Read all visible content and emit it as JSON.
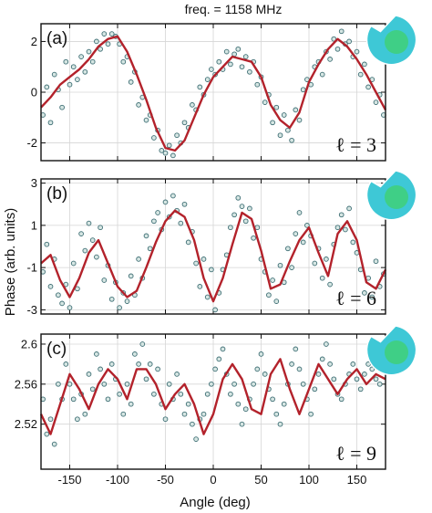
{
  "figure": {
    "title": "freq. = 1158 MHz",
    "xlabel": "Angle (deg)",
    "ylabel": "Phase (arb. units)"
  },
  "colors": {
    "fit_line": "#b3222b",
    "points_fill": "#d6e6e3",
    "points_stroke": "#3e6e74",
    "icon_outer": "#3ec8d6",
    "icon_inner": "#3fcf86",
    "grid": "#d6d6d6"
  },
  "chart_data": [
    {
      "type": "line",
      "panel_label": "(a)",
      "mode_label": "ℓ = 3",
      "ylim": [
        -2.7,
        2.7
      ],
      "yticks": [
        -2,
        0,
        2
      ],
      "ytick_labels": [
        "-2",
        "0",
        "2"
      ],
      "xlim": [
        -180,
        180
      ],
      "xticks": [
        -150,
        -100,
        -50,
        0,
        50,
        100,
        150
      ],
      "grid": true,
      "series": [
        {
          "kind": "line",
          "x": [
            -180,
            -170,
            -160,
            -150,
            -140,
            -130,
            -120,
            -110,
            -100,
            -90,
            -80,
            -70,
            -60,
            -50,
            -40,
            -30,
            -20,
            -10,
            0,
            10,
            20,
            30,
            40,
            50,
            60,
            70,
            80,
            90,
            100,
            110,
            120,
            130,
            140,
            150,
            160,
            170,
            180
          ],
          "y": [
            -0.6,
            -0.2,
            0.3,
            0.6,
            0.9,
            1.3,
            1.8,
            2.1,
            2.2,
            1.6,
            0.7,
            -0.3,
            -1.4,
            -2.2,
            -2.3,
            -1.9,
            -1.0,
            -0.1,
            0.6,
            1.0,
            1.4,
            1.3,
            1.2,
            0.6,
            -0.5,
            -1.1,
            -1.4,
            -0.8,
            0.4,
            1.1,
            1.7,
            2.1,
            1.8,
            1.3,
            0.7,
            0.0,
            -0.7
          ]
        },
        {
          "kind": "scatter",
          "x": [
            -178,
            -174,
            -170,
            -166,
            -162,
            -158,
            -154,
            -150,
            -146,
            -142,
            -138,
            -134,
            -130,
            -126,
            -122,
            -118,
            -114,
            -110,
            -106,
            -102,
            -98,
            -94,
            -90,
            -86,
            -82,
            -78,
            -74,
            -70,
            -66,
            -62,
            -58,
            -54,
            -50,
            -46,
            -42,
            -38,
            -34,
            -30,
            -26,
            -22,
            -18,
            -14,
            -10,
            -6,
            -2,
            2,
            6,
            10,
            14,
            18,
            22,
            26,
            30,
            34,
            38,
            42,
            46,
            50,
            54,
            58,
            62,
            66,
            70,
            74,
            78,
            82,
            86,
            90,
            94,
            98,
            102,
            106,
            110,
            114,
            118,
            122,
            126,
            130,
            134,
            138,
            142,
            146,
            150,
            154,
            158,
            162,
            166,
            170,
            174,
            178
          ],
          "y": [
            -0.9,
            0.2,
            -1.2,
            0.7,
            0.1,
            -0.6,
            1.2,
            0.3,
            1.0,
            0.5,
            1.4,
            0.8,
            1.6,
            1.2,
            2.0,
            1.7,
            2.3,
            1.9,
            2.3,
            2.2,
            1.9,
            1.2,
            1.4,
            0.4,
            0.8,
            -0.5,
            -0.2,
            -1.1,
            -0.9,
            -1.8,
            -1.5,
            -2.3,
            -2.4,
            -2.1,
            -2.5,
            -1.7,
            -2.0,
            -1.2,
            -1.4,
            -0.5,
            -0.7,
            0.2,
            -0.1,
            0.5,
            0.9,
            0.7,
            1.2,
            0.9,
            1.6,
            1.1,
            1.5,
            1.7,
            1.0,
            1.4,
            0.8,
            1.2,
            0.3,
            0.6,
            -0.4,
            -0.1,
            -1.2,
            -0.6,
            -1.7,
            -0.9,
            -1.5,
            -1.9,
            -0.7,
            -1.1,
            0.1,
            0.5,
            0.3,
            1.0,
            1.2,
            0.7,
            1.6,
            1.3,
            2.1,
            1.7,
            2.4,
            1.9,
            2.0,
            1.4,
            1.6,
            0.7,
            1.1,
            0.2,
            0.5,
            -0.4,
            -0.1,
            -0.9
          ]
        }
      ]
    },
    {
      "type": "line",
      "panel_label": "(b)",
      "mode_label": "ℓ = 6",
      "ylim": [
        -3.2,
        3.2
      ],
      "yticks": [
        -3,
        -1,
        1,
        3
      ],
      "ytick_labels": [
        "-3",
        "-1",
        "1",
        "3"
      ],
      "xlim": [
        -180,
        180
      ],
      "xticks": [
        -150,
        -100,
        -50,
        0,
        50,
        100,
        150
      ],
      "grid": true,
      "series": [
        {
          "kind": "line",
          "x": [
            -180,
            -170,
            -160,
            -150,
            -140,
            -130,
            -120,
            -110,
            -100,
            -90,
            -80,
            -70,
            -60,
            -50,
            -40,
            -30,
            -20,
            -10,
            0,
            10,
            20,
            30,
            40,
            50,
            60,
            70,
            80,
            90,
            100,
            110,
            120,
            130,
            140,
            150,
            160,
            170,
            180
          ],
          "y": [
            -0.8,
            -0.4,
            -1.6,
            -2.4,
            -1.5,
            -0.3,
            0.3,
            -0.8,
            -1.9,
            -2.4,
            -2.1,
            -1.0,
            0.2,
            1.2,
            1.7,
            1.4,
            0.3,
            -1.5,
            -2.6,
            -1.5,
            0.1,
            1.6,
            1.3,
            -0.2,
            -2.0,
            -1.8,
            -0.7,
            0.3,
            0.9,
            -0.3,
            -1.4,
            0.6,
            1.2,
            0.3,
            -1.7,
            -2.0,
            -1.1
          ]
        },
        {
          "kind": "scatter",
          "x": [
            -178,
            -174,
            -170,
            -166,
            -162,
            -158,
            -154,
            -150,
            -146,
            -142,
            -138,
            -134,
            -130,
            -126,
            -122,
            -118,
            -114,
            -110,
            -106,
            -102,
            -98,
            -94,
            -90,
            -86,
            -82,
            -78,
            -74,
            -70,
            -66,
            -62,
            -58,
            -54,
            -50,
            -46,
            -42,
            -38,
            -34,
            -30,
            -26,
            -22,
            -18,
            -14,
            -10,
            -6,
            -2,
            2,
            6,
            10,
            14,
            18,
            22,
            26,
            30,
            34,
            38,
            42,
            46,
            50,
            54,
            58,
            62,
            66,
            70,
            74,
            78,
            82,
            86,
            90,
            94,
            98,
            102,
            106,
            110,
            114,
            118,
            122,
            126,
            130,
            134,
            138,
            142,
            146,
            150,
            154,
            158,
            162,
            166,
            170,
            174,
            178
          ],
          "y": [
            -1.2,
            0.1,
            -1.9,
            -0.6,
            -2.3,
            -2.7,
            -1.8,
            -2.9,
            -0.8,
            -2.0,
            0.6,
            -0.2,
            1.1,
            0.3,
            -0.5,
            0.9,
            -1.6,
            -0.9,
            -2.5,
            -1.7,
            -2.9,
            -2.2,
            -2.6,
            -1.4,
            -2.3,
            -0.6,
            -1.5,
            0.5,
            -0.1,
            1.2,
            1.6,
            0.8,
            2.1,
            1.4,
            2.4,
            1.7,
            1.1,
            2.0,
            0.2,
            0.7,
            -0.8,
            -1.9,
            -0.6,
            -2.4,
            -1.1,
            -3.0,
            -2.2,
            -1.1,
            -0.4,
            0.9,
            1.5,
            2.3,
            1.9,
            1.2,
            1.8,
            0.4,
            0.9,
            -0.6,
            -1.2,
            -2.3,
            -1.6,
            -2.6,
            -0.9,
            -1.7,
            -0.1,
            -1.0,
            0.6,
            1.6,
            0.2,
            1.0,
            0.5,
            -0.8,
            -0.1,
            -1.5,
            -0.6,
            -1.8,
            0.1,
            0.9,
            1.5,
            0.8,
            1.8,
            0.2,
            -0.3,
            -1.1,
            -2.2,
            -1.5,
            -2.4,
            -0.7,
            -1.9,
            -1.3
          ]
        }
      ]
    },
    {
      "type": "line",
      "panel_label": "(c)",
      "mode_label": "ℓ = 9",
      "ylim": [
        2.475,
        2.61
      ],
      "yticks": [
        2.52,
        2.56,
        2.6
      ],
      "ytick_labels": [
        "2.52",
        "2.56",
        "2.6"
      ],
      "xlim": [
        -180,
        180
      ],
      "xticks": [
        -150,
        -100,
        -50,
        0,
        50,
        100,
        150
      ],
      "xtick_labels": [
        "-150",
        "-100",
        "-50",
        "0",
        "50",
        "100",
        "150"
      ],
      "grid": true,
      "series": [
        {
          "kind": "line",
          "x": [
            -180,
            -170,
            -160,
            -150,
            -140,
            -130,
            -120,
            -110,
            -100,
            -90,
            -80,
            -70,
            -60,
            -50,
            -40,
            -30,
            -20,
            -10,
            0,
            10,
            20,
            30,
            40,
            50,
            60,
            70,
            80,
            90,
            100,
            110,
            120,
            130,
            140,
            150,
            160,
            170,
            180
          ],
          "y": [
            2.53,
            2.51,
            2.54,
            2.57,
            2.555,
            2.535,
            2.56,
            2.575,
            2.565,
            2.545,
            2.575,
            2.575,
            2.56,
            2.535,
            2.55,
            2.56,
            2.54,
            2.51,
            2.53,
            2.565,
            2.58,
            2.565,
            2.535,
            2.53,
            2.57,
            2.585,
            2.555,
            2.53,
            2.555,
            2.58,
            2.565,
            2.55,
            2.565,
            2.575,
            2.56,
            2.57,
            2.565
          ]
        },
        {
          "kind": "scatter",
          "x": [
            -178,
            -174,
            -170,
            -166,
            -162,
            -158,
            -154,
            -150,
            -146,
            -142,
            -138,
            -134,
            -130,
            -126,
            -122,
            -118,
            -114,
            -110,
            -106,
            -102,
            -98,
            -94,
            -90,
            -86,
            -82,
            -78,
            -74,
            -70,
            -66,
            -62,
            -58,
            -54,
            -50,
            -46,
            -42,
            -38,
            -34,
            -30,
            -26,
            -22,
            -18,
            -14,
            -10,
            -6,
            -2,
            2,
            6,
            10,
            14,
            18,
            22,
            26,
            30,
            34,
            38,
            42,
            46,
            50,
            54,
            58,
            62,
            66,
            70,
            74,
            78,
            82,
            86,
            90,
            94,
            98,
            102,
            106,
            110,
            114,
            118,
            122,
            126,
            130,
            134,
            138,
            142,
            146,
            150,
            154,
            158,
            162,
            166,
            170,
            174,
            178
          ],
          "y": [
            2.545,
            2.51,
            2.525,
            2.5,
            2.56,
            2.545,
            2.58,
            2.56,
            2.545,
            2.525,
            2.55,
            2.53,
            2.57,
            2.555,
            2.59,
            2.575,
            2.56,
            2.545,
            2.58,
            2.565,
            2.55,
            2.53,
            2.56,
            2.54,
            2.59,
            2.58,
            2.6,
            2.565,
            2.58,
            2.55,
            2.575,
            2.54,
            2.525,
            2.56,
            2.545,
            2.57,
            2.55,
            2.53,
            2.54,
            2.52,
            2.505,
            2.525,
            2.53,
            2.55,
            2.56,
            2.575,
            2.585,
            2.595,
            2.57,
            2.55,
            2.56,
            2.54,
            2.52,
            2.535,
            2.545,
            2.56,
            2.575,
            2.59,
            2.57,
            2.555,
            2.545,
            2.53,
            2.52,
            2.54,
            2.56,
            2.58,
            2.595,
            2.575,
            2.56,
            2.545,
            2.53,
            2.555,
            2.57,
            2.585,
            2.6,
            2.58,
            2.565,
            2.55,
            2.545,
            2.56,
            2.57,
            2.58,
            2.565,
            2.555,
            2.57,
            2.58,
            2.575,
            2.565,
            2.56,
            2.58
          ]
        }
      ]
    }
  ]
}
